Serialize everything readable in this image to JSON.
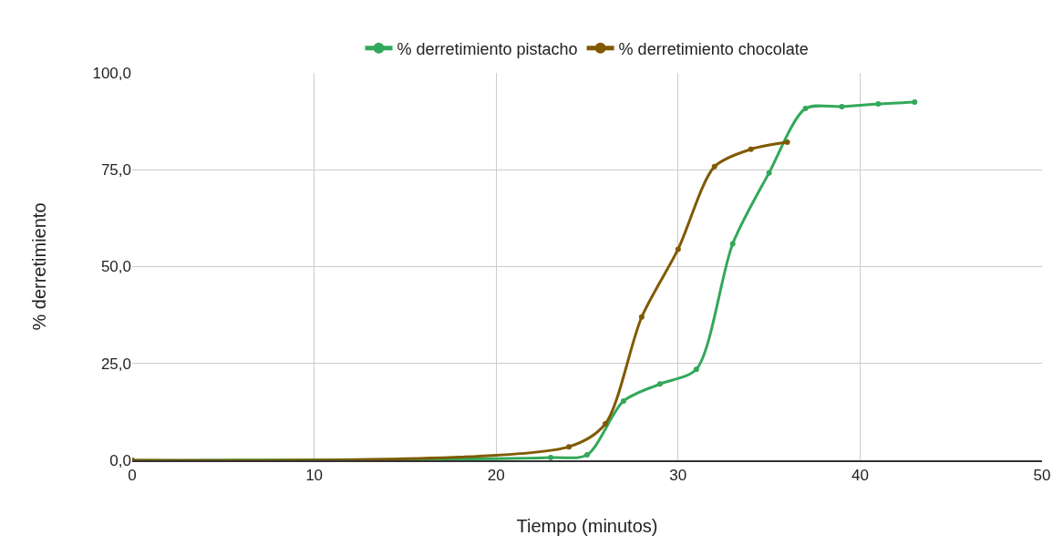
{
  "chart_data": {
    "type": "line",
    "xlabel": "Tiempo (minutos)",
    "ylabel": "% derretimiento",
    "series": [
      {
        "name": "% derretimiento pistacho",
        "color": "#33a85a",
        "x": [
          0,
          23,
          25,
          27,
          29,
          31,
          33,
          35,
          37,
          39,
          41,
          43
        ],
        "values": [
          0,
          0.7,
          1.4,
          15.3,
          19.7,
          23.5,
          55.9,
          74.2,
          90.8,
          91.3,
          92,
          92.5
        ]
      },
      {
        "name": "% derretimiento chocolate",
        "color": "#7f5a00",
        "x": [
          0,
          24,
          26,
          28,
          30,
          32,
          34,
          36
        ],
        "values": [
          0,
          3.5,
          9.4,
          37,
          54.5,
          75.8,
          80.3,
          82.1
        ]
      }
    ],
    "xlim": [
      0,
      50
    ],
    "xticks": [
      0,
      10,
      20,
      30,
      40,
      50
    ],
    "ylim": [
      0,
      100
    ],
    "yticks": [
      {
        "value": 0,
        "label": "0,0"
      },
      {
        "value": 25,
        "label": "25,0"
      },
      {
        "value": 50,
        "label": "50,0"
      },
      {
        "value": 75,
        "label": "75,0"
      },
      {
        "value": 100,
        "label": "100,0"
      }
    ],
    "grid": true,
    "legend": "top",
    "marker": "circle",
    "line_style": "solid"
  }
}
